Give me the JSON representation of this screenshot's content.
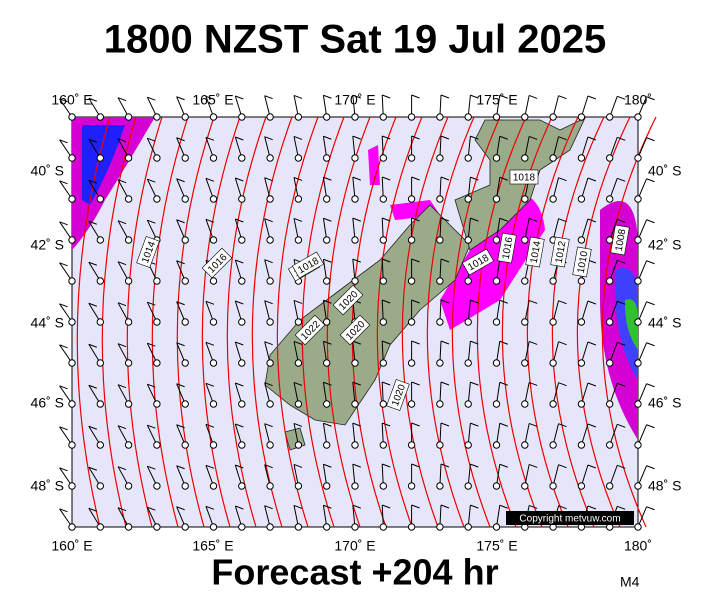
{
  "header": {
    "title": "1800 NZST Sat 19 Jul 2025"
  },
  "axes": {
    "top": [
      "160˚ E",
      "165˚ E",
      "170˚ E",
      "175˚ E",
      "180˚"
    ],
    "bottom": [
      "160˚ E",
      "165˚ E",
      "170˚ E",
      "175˚ E",
      "180˚"
    ],
    "left": [
      "40˚ S",
      "42˚ S",
      "44˚ S",
      "46˚ S",
      "48˚ S"
    ],
    "right": [
      "40˚ S",
      "42˚ S",
      "44˚ S",
      "46˚ S",
      "48˚ S"
    ]
  },
  "isobar_labels": [
    "1014",
    "1016",
    "1018",
    "1018",
    "1020",
    "1022",
    "1020",
    "1020",
    "1018",
    "1018",
    "1016",
    "1014",
    "1012",
    "1010",
    "1008"
  ],
  "copyright": "Copyright metvuw.com",
  "footer": {
    "text": "Forecast +204 hr",
    "code": "M4"
  }
}
